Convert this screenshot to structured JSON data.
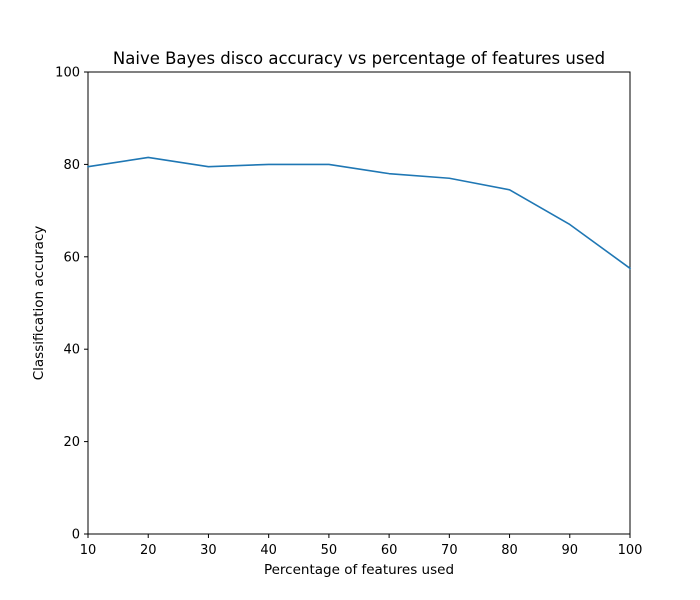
{
  "chart_data": {
    "type": "line",
    "title": "Naive Bayes disco accuracy vs percentage of features used",
    "xlabel": "Percentage of features used",
    "ylabel": "Classification accuracy",
    "xlim": [
      10,
      100
    ],
    "ylim": [
      0,
      100
    ],
    "xticks": [
      10,
      20,
      30,
      40,
      50,
      60,
      70,
      80,
      90,
      100
    ],
    "yticks": [
      0,
      20,
      40,
      60,
      80,
      100
    ],
    "grid": false,
    "series": [
      {
        "color": "#1f77b4",
        "x": [
          10,
          20,
          30,
          40,
          50,
          60,
          70,
          80,
          90,
          100
        ],
        "y": [
          79.5,
          81.5,
          79.5,
          80.0,
          80.0,
          78.0,
          77.0,
          74.5,
          67.0,
          57.5
        ]
      }
    ]
  }
}
